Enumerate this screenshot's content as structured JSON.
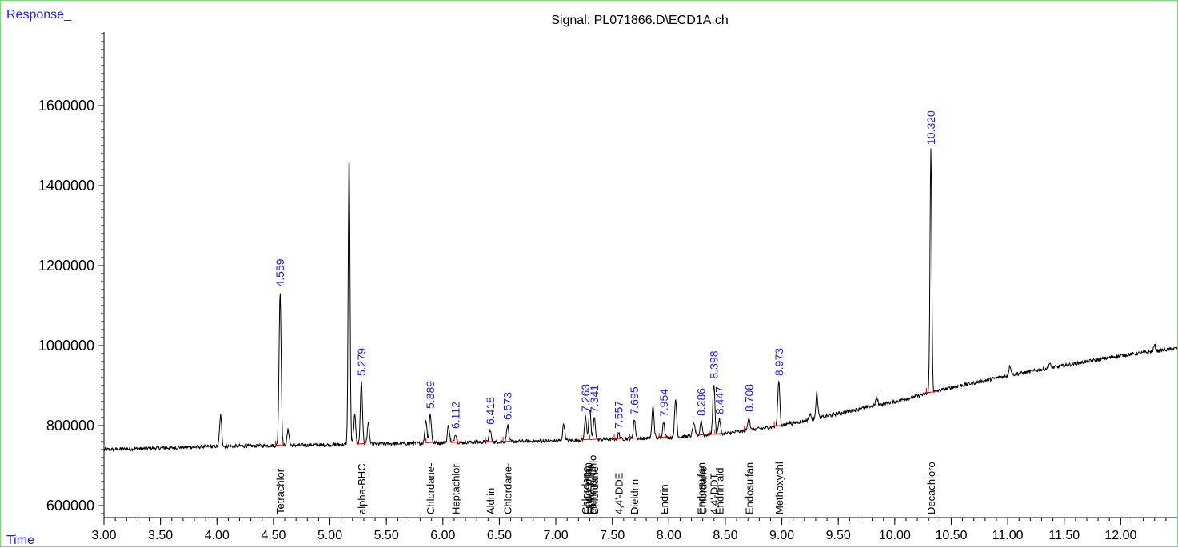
{
  "header": {
    "y_axis_label": "Response_",
    "x_axis_label": "Time",
    "title": "Signal: PL071866.D\\ECD1A.ch"
  },
  "colors": {
    "trace": "#000000",
    "peak_label": "#1a1aff",
    "baseline": "#ff0000",
    "frame": "#7cd67c"
  },
  "chart_data": {
    "type": "line",
    "title": "Signal: PL071866.D\\ECD1A.ch",
    "xlabel": "Time",
    "ylabel": "Response_",
    "xlim": [
      3.0,
      12.5
    ],
    "ylim": [
      560000,
      1800000
    ],
    "x_ticks": [
      3.0,
      3.5,
      4.0,
      4.5,
      5.0,
      5.5,
      6.0,
      6.5,
      7.0,
      7.5,
      8.0,
      8.5,
      9.0,
      9.5,
      10.0,
      10.5,
      11.0,
      11.5,
      12.0
    ],
    "x_tick_labels": [
      "3.00",
      "3.50",
      "4.00",
      "4.50",
      "5.00",
      "5.50",
      "6.00",
      "6.50",
      "7.00",
      "7.50",
      "8.00",
      "8.50",
      "9.00",
      "9.50",
      "10.00",
      "10.50",
      "11.00",
      "11.50",
      "12.00"
    ],
    "y_ticks": [
      600000,
      800000,
      1000000,
      1200000,
      1400000,
      1600000
    ],
    "y_tick_labels": [
      "600000",
      "800000",
      "1000000",
      "1200000",
      "1400000",
      "1600000"
    ],
    "baseline": [
      [
        3.0,
        740000
      ],
      [
        4.0,
        748000
      ],
      [
        5.0,
        752000
      ],
      [
        6.0,
        757000
      ],
      [
        7.0,
        762000
      ],
      [
        8.0,
        770000
      ],
      [
        8.5,
        780000
      ],
      [
        9.0,
        800000
      ],
      [
        9.5,
        830000
      ],
      [
        10.0,
        860000
      ],
      [
        10.5,
        895000
      ],
      [
        11.0,
        925000
      ],
      [
        11.5,
        950000
      ],
      [
        12.0,
        975000
      ],
      [
        12.5,
        993000
      ]
    ],
    "peaks": [
      {
        "x": 4.032,
        "y": 825000
      },
      {
        "x": 4.559,
        "y": 1135000
      },
      {
        "x": 4.63,
        "y": 790000
      },
      {
        "x": 5.17,
        "y": 1480000
      },
      {
        "x": 5.22,
        "y": 825000
      },
      {
        "x": 5.279,
        "y": 912000
      },
      {
        "x": 5.34,
        "y": 805000
      },
      {
        "x": 5.85,
        "y": 815000
      },
      {
        "x": 5.889,
        "y": 830000
      },
      {
        "x": 6.05,
        "y": 800000
      },
      {
        "x": 6.112,
        "y": 780000
      },
      {
        "x": 6.418,
        "y": 790000
      },
      {
        "x": 6.573,
        "y": 802000
      },
      {
        "x": 7.07,
        "y": 805000
      },
      {
        "x": 7.263,
        "y": 822000
      },
      {
        "x": 7.3,
        "y": 840000
      },
      {
        "x": 7.341,
        "y": 820000
      },
      {
        "x": 7.557,
        "y": 780000
      },
      {
        "x": 7.695,
        "y": 815000
      },
      {
        "x": 7.86,
        "y": 848000
      },
      {
        "x": 7.954,
        "y": 810000
      },
      {
        "x": 8.06,
        "y": 865000
      },
      {
        "x": 8.22,
        "y": 808000
      },
      {
        "x": 8.286,
        "y": 812000
      },
      {
        "x": 8.398,
        "y": 905000
      },
      {
        "x": 8.447,
        "y": 816000
      },
      {
        "x": 8.708,
        "y": 822000
      },
      {
        "x": 8.973,
        "y": 912000
      },
      {
        "x": 9.06,
        "y": 810000
      },
      {
        "x": 9.25,
        "y": 828000
      },
      {
        "x": 9.31,
        "y": 880000
      },
      {
        "x": 9.7,
        "y": 845000
      },
      {
        "x": 9.84,
        "y": 870000
      },
      {
        "x": 10.32,
        "y": 1490000
      },
      {
        "x": 11.02,
        "y": 950000
      },
      {
        "x": 11.37,
        "y": 955000
      },
      {
        "x": 12.3,
        "y": 1000000
      }
    ],
    "retention_labels": [
      {
        "x": 4.559,
        "y": 1135000,
        "text": "4.559"
      },
      {
        "x": 5.279,
        "y": 912000,
        "text": "5.279"
      },
      {
        "x": 5.889,
        "y": 830000,
        "text": "5.889"
      },
      {
        "x": 6.112,
        "y": 780000,
        "text": "6.112"
      },
      {
        "x": 6.418,
        "y": 790000,
        "text": "6.418"
      },
      {
        "x": 6.573,
        "y": 802000,
        "text": "6.573"
      },
      {
        "x": 7.263,
        "y": 822000,
        "text": "7.263"
      },
      {
        "x": 7.341,
        "y": 820000,
        "text": "7.341"
      },
      {
        "x": 7.557,
        "y": 780000,
        "text": "7.557"
      },
      {
        "x": 7.695,
        "y": 815000,
        "text": "7.695"
      },
      {
        "x": 7.954,
        "y": 810000,
        "text": "7.954"
      },
      {
        "x": 8.286,
        "y": 812000,
        "text": "8.286"
      },
      {
        "x": 8.398,
        "y": 905000,
        "text": "8.398"
      },
      {
        "x": 8.447,
        "y": 816000,
        "text": "8.447"
      },
      {
        "x": 8.708,
        "y": 822000,
        "text": "8.708"
      },
      {
        "x": 8.973,
        "y": 912000,
        "text": "8.973"
      },
      {
        "x": 10.32,
        "y": 1490000,
        "text": "10.320"
      }
    ],
    "compound_labels": [
      {
        "x": 4.559,
        "text": "Tetrachlor"
      },
      {
        "x": 5.279,
        "text": "alpha-BHC"
      },
      {
        "x": 5.889,
        "text": "Chlordane-"
      },
      {
        "x": 6.112,
        "text": "Heptachlor"
      },
      {
        "x": 6.418,
        "text": "Aldrin"
      },
      {
        "x": 6.573,
        "text": "Chlordane-"
      },
      {
        "x": 7.263,
        "text": "Chlordane"
      },
      {
        "x": 7.28,
        "text": "Endosulfan"
      },
      {
        "x": 7.3,
        "text": "alpha-Chlo"
      },
      {
        "x": 7.32,
        "text": "gamma-Chlo"
      },
      {
        "x": 7.341,
        "text": "Chlordane"
      },
      {
        "x": 7.557,
        "text": "4,4'-DDE"
      },
      {
        "x": 7.695,
        "text": "Dieldrin"
      },
      {
        "x": 7.954,
        "text": "Endrin"
      },
      {
        "x": 8.286,
        "text": "Endosulfan"
      },
      {
        "x": 8.3,
        "text": "Chlordane"
      },
      {
        "x": 8.398,
        "text": "4,4'-DDT"
      },
      {
        "x": 8.447,
        "text": "Endrin ald"
      },
      {
        "x": 8.708,
        "text": "Endosulfan"
      },
      {
        "x": 8.973,
        "text": "Methoxychl"
      },
      {
        "x": 10.32,
        "text": "Decachloro"
      }
    ]
  }
}
